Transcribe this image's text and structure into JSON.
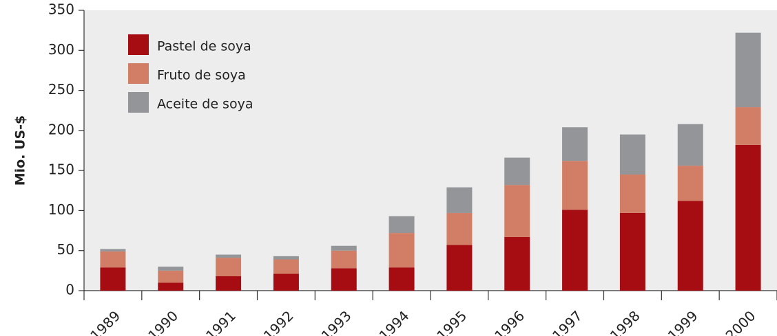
{
  "chart_data": {
    "type": "stacked_bar",
    "y_label": "Mio. US-$",
    "categories": [
      "1989",
      "1990",
      "1991",
      "1992",
      "1993",
      "1994",
      "1995",
      "1996",
      "1997",
      "1998",
      "1999",
      "2000"
    ],
    "series": [
      {
        "name": "Pastel de soya",
        "color": "#a50d12",
        "values": [
          29,
          10,
          18,
          21,
          28,
          29,
          57,
          67,
          101,
          97,
          112,
          182
        ]
      },
      {
        "name": "Fruto de soya",
        "color": "#d27e66",
        "values": [
          20,
          15,
          23,
          18,
          22,
          43,
          40,
          65,
          61,
          48,
          44,
          47
        ]
      },
      {
        "name": "Aceite de soya",
        "color": "#939598",
        "values": [
          3,
          5,
          4,
          4,
          6,
          21,
          32,
          34,
          42,
          50,
          52,
          93
        ]
      }
    ],
    "ylim": [
      0,
      350
    ],
    "yticks": [
      0,
      50,
      100,
      150,
      200,
      250,
      300,
      350
    ],
    "legend": "upper left"
  }
}
